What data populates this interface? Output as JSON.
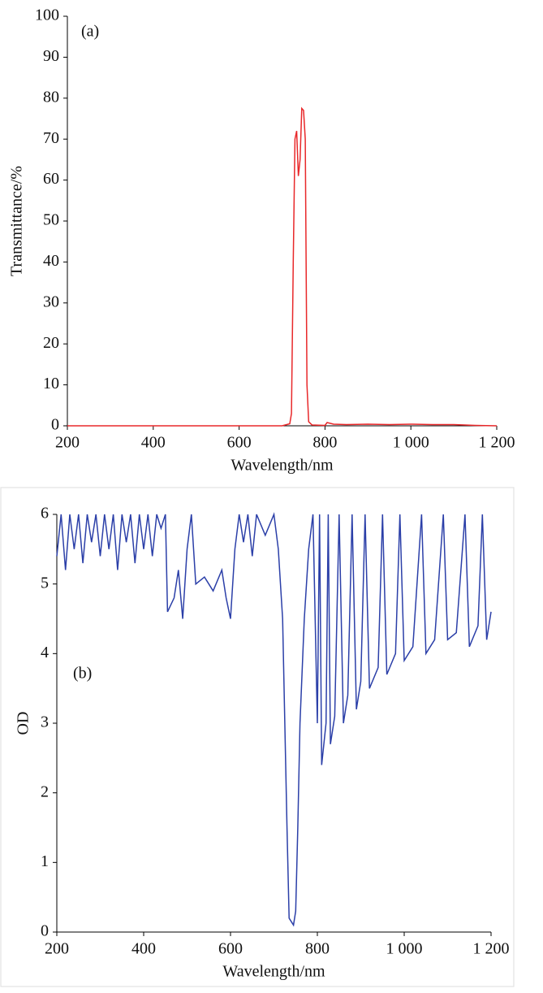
{
  "chart_data": [
    {
      "type": "line",
      "label": "(a)",
      "xlabel": "Wavelength/nm",
      "ylabel": "Transmittance/%",
      "xlim": [
        200,
        1200
      ],
      "ylim": [
        0,
        100
      ],
      "xticks": [
        200,
        400,
        600,
        800,
        {
          "value": 1000,
          "label": "1 000"
        },
        {
          "value": 1200,
          "label": "1 200"
        }
      ],
      "yticks": [
        0,
        10,
        20,
        30,
        40,
        50,
        60,
        70,
        80,
        90,
        100
      ],
      "series": [
        {
          "name": "Transmittance",
          "color": "#e8282a",
          "x": [
            200,
            400,
            600,
            700,
            718,
            722,
            726,
            730,
            734,
            738,
            742,
            746,
            750,
            754,
            758,
            762,
            770,
            800,
            805,
            820,
            850,
            900,
            950,
            1000,
            1050,
            1100,
            1150,
            1200
          ],
          "values": [
            0,
            0,
            0,
            0,
            0.5,
            3,
            40,
            70,
            72,
            61,
            65,
            77.5,
            77,
            70,
            10,
            1,
            0.2,
            0.1,
            0.8,
            0.4,
            0.3,
            0.4,
            0.3,
            0.4,
            0.3,
            0.3,
            0.1,
            0
          ]
        }
      ]
    },
    {
      "type": "line",
      "label": "(b)",
      "xlabel": "Wavelength/nm",
      "ylabel": "OD",
      "xlim": [
        200,
        1200
      ],
      "ylim": [
        0,
        6
      ],
      "xticks": [
        200,
        400,
        600,
        800,
        {
          "value": 1000,
          "label": "1 000"
        },
        {
          "value": 1200,
          "label": "1 200"
        }
      ],
      "yticks": [
        0,
        1,
        2,
        3,
        4,
        5,
        6
      ],
      "series": [
        {
          "name": "OD",
          "color": "#2b3fa8",
          "x": [
            200,
            210,
            220,
            230,
            240,
            250,
            260,
            270,
            280,
            290,
            300,
            310,
            320,
            330,
            340,
            350,
            360,
            370,
            380,
            390,
            400,
            410,
            420,
            430,
            440,
            450,
            455,
            470,
            480,
            490,
            500,
            510,
            520,
            540,
            560,
            580,
            590,
            600,
            610,
            620,
            630,
            640,
            650,
            660,
            680,
            700,
            710,
            720,
            725,
            730,
            735,
            740,
            745,
            750,
            755,
            760,
            770,
            780,
            790,
            800,
            805,
            810,
            820,
            825,
            830,
            840,
            850,
            860,
            870,
            880,
            890,
            900,
            910,
            920,
            940,
            950,
            960,
            980,
            990,
            1000,
            1020,
            1040,
            1050,
            1070,
            1090,
            1100,
            1120,
            1140,
            1150,
            1170,
            1180,
            1190,
            1200
          ],
          "values": [
            5.4,
            6,
            5.2,
            6,
            5.5,
            6,
            5.3,
            6,
            5.6,
            6,
            5.4,
            6,
            5.5,
            6,
            5.2,
            6,
            5.6,
            6,
            5.3,
            6,
            5.5,
            6,
            5.4,
            6,
            5.8,
            6,
            4.6,
            4.8,
            5.2,
            4.5,
            5.5,
            6,
            5.0,
            5.1,
            4.9,
            5.2,
            4.8,
            4.5,
            5.5,
            6,
            5.6,
            6,
            5.4,
            6,
            5.7,
            6,
            5.5,
            4.5,
            3,
            1.5,
            0.2,
            0.15,
            0.1,
            0.3,
            1.5,
            3,
            4.5,
            5.5,
            6,
            3,
            6,
            2.4,
            3.0,
            6,
            2.7,
            3.1,
            6,
            3.0,
            3.4,
            6,
            3.2,
            3.6,
            6,
            3.5,
            3.8,
            6,
            3.7,
            4.0,
            6,
            3.9,
            4.1,
            6,
            4.0,
            4.2,
            6,
            4.2,
            4.3,
            6,
            4.1,
            4.4,
            6,
            4.2,
            4.6
          ]
        }
      ]
    }
  ]
}
